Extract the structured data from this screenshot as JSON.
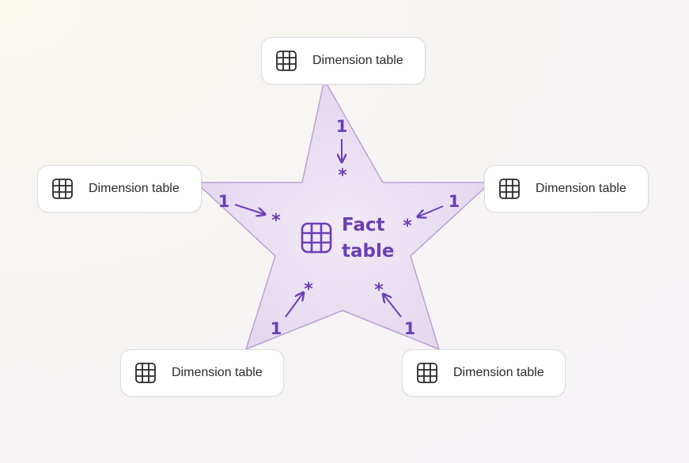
{
  "fact_table": {
    "line1": "Fact",
    "line2": "table",
    "icon": "table-grid-icon"
  },
  "dimension_tables": [
    {
      "id": "top",
      "label": "Dimension table",
      "icon": "table-grid-icon"
    },
    {
      "id": "left",
      "label": "Dimension table",
      "icon": "table-grid-icon"
    },
    {
      "id": "right",
      "label": "Dimension table",
      "icon": "table-grid-icon"
    },
    {
      "id": "bottom-left",
      "label": "Dimension table",
      "icon": "table-grid-icon"
    },
    {
      "id": "bottom-right",
      "label": "Dimension table",
      "icon": "table-grid-icon"
    }
  ],
  "relationships": [
    {
      "from": "top",
      "one": "1",
      "many": "*"
    },
    {
      "from": "left",
      "one": "1",
      "many": "*"
    },
    {
      "from": "right",
      "one": "1",
      "many": "*"
    },
    {
      "from": "bottom-left",
      "one": "1",
      "many": "*"
    },
    {
      "from": "bottom-right",
      "one": "1",
      "many": "*"
    }
  ],
  "colors": {
    "star_fill": "#e6daf0",
    "star_stroke": "#b7a2d6",
    "accent": "#6b3fb3",
    "card_border": "#dcdcdf"
  }
}
